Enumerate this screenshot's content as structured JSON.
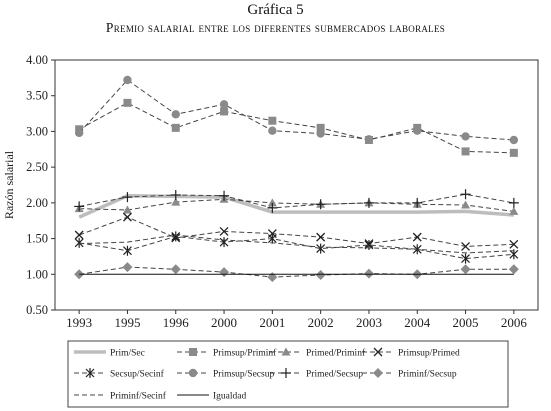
{
  "figure_label": "Gráfica 5",
  "figure_title": "Premio salarial entre los diferentes submercados laborales",
  "chart_data": {
    "type": "line",
    "title": "Premio salarial entre los diferentes submercados laborales",
    "xlabel": "",
    "ylabel": "Razón salarial",
    "categories": [
      "1993",
      "1995",
      "1996",
      "2000",
      "2001",
      "2002",
      "2003",
      "2004",
      "2005",
      "2006"
    ],
    "ylim": [
      0.5,
      4.0
    ],
    "yticks": [
      "0.50",
      "1.00",
      "1.50",
      "2.00",
      "2.50",
      "3.00",
      "3.50",
      "4.00"
    ],
    "grid": false,
    "legend_position": "bottom",
    "series": [
      {
        "name": "Prim/Sec",
        "style": "thick-gray",
        "values": [
          1.8,
          2.1,
          2.09,
          2.08,
          1.87,
          1.87,
          1.87,
          1.87,
          1.88,
          1.83
        ]
      },
      {
        "name": "Primsup/Priminf",
        "style": "dash-square",
        "values": [
          3.03,
          3.4,
          3.05,
          3.28,
          3.15,
          3.05,
          2.88,
          3.05,
          2.72,
          2.7
        ]
      },
      {
        "name": "Primed/Priminf",
        "style": "dash-triangle",
        "values": [
          1.92,
          1.9,
          2.01,
          2.05,
          2.0,
          1.98,
          2.0,
          1.98,
          1.97,
          1.88
        ]
      },
      {
        "name": "Primsup/Primed",
        "style": "dash-x",
        "values": [
          1.55,
          1.8,
          1.51,
          1.6,
          1.57,
          1.52,
          1.43,
          1.52,
          1.39,
          1.42
        ]
      },
      {
        "name": "Secsup/Secinf",
        "style": "dash-star",
        "values": [
          1.44,
          1.33,
          1.53,
          1.45,
          1.5,
          1.36,
          1.41,
          1.35,
          1.22,
          1.28
        ]
      },
      {
        "name": "Primsup/Secsup",
        "style": "dash-circle",
        "values": [
          2.98,
          3.72,
          3.24,
          3.38,
          3.01,
          2.97,
          2.89,
          3.01,
          2.93,
          2.88
        ]
      },
      {
        "name": "Primed/Secsup",
        "style": "dash-plus",
        "values": [
          1.95,
          2.08,
          2.11,
          2.1,
          1.93,
          1.98,
          2.0,
          2.0,
          2.12,
          2.0
        ]
      },
      {
        "name": "Priminf/Secsup",
        "style": "dash-diamond",
        "values": [
          1.0,
          1.1,
          1.07,
          1.03,
          0.96,
          0.99,
          1.01,
          1.0,
          1.07,
          1.07
        ]
      },
      {
        "name": "Priminf/Secinf",
        "style": "dash-plain",
        "values": [
          1.43,
          1.45,
          1.55,
          1.48,
          1.44,
          1.38,
          1.37,
          1.35,
          1.3,
          1.33
        ]
      },
      {
        "name": "Igualdad",
        "style": "solid-thin",
        "values": [
          1.0,
          1.0,
          1.0,
          1.0,
          1.0,
          1.0,
          1.0,
          1.0,
          1.0,
          1.0
        ]
      }
    ]
  }
}
